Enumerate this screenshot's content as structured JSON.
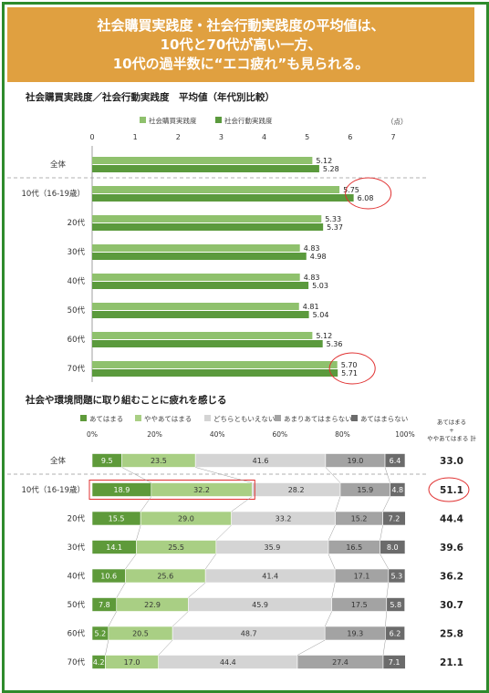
{
  "banner": {
    "line1": "社会購買実践度・社会行動実践度の平均値は、",
    "line2": "10代と70代が高い一方、",
    "line3": "10代の過半数に“エコ疲れ”も見られる。"
  },
  "colors": {
    "frame": "#2e8a2c",
    "banner_bg": "#e0a040",
    "purchase": "#8fc16d",
    "action": "#5b9a3d",
    "highlight": "#e03030",
    "s1": "#5e9a3a",
    "s2": "#a9cf84",
    "s3": "#d4d4d4",
    "s4": "#a3a3a3",
    "s5": "#6b6b6b"
  },
  "chart_data": [
    {
      "type": "bar",
      "orientation": "horizontal",
      "title": "社会購買実践度／社会行動実践度　平均値（年代別比較）",
      "unit": "（点）",
      "categories": [
        "全体",
        "10代（16-19歳）",
        "20代",
        "30代",
        "40代",
        "50代",
        "60代",
        "70代"
      ],
      "xlim": [
        0,
        7
      ],
      "xticks": [
        "0",
        "1",
        "2",
        "3",
        "4",
        "5",
        "6",
        "7"
      ],
      "legend_position": "top",
      "series": [
        {
          "name": "社会購買実践度",
          "values": [
            5.12,
            5.75,
            5.33,
            4.83,
            4.83,
            4.81,
            5.12,
            5.7
          ],
          "labels": [
            "5.12",
            "5.75",
            "5.33",
            "4.83",
            "4.83",
            "4.81",
            "5.12",
            "5.70"
          ]
        },
        {
          "name": "社会行動実践度",
          "values": [
            5.28,
            6.08,
            5.37,
            4.98,
            5.03,
            5.04,
            5.36,
            5.71
          ],
          "labels": [
            "5.28",
            "6.08",
            "5.37",
            "4.98",
            "5.03",
            "5.04",
            "5.36",
            "5.71"
          ]
        }
      ],
      "highlighted_categories": [
        "10代（16-19歳）",
        "70代"
      ]
    },
    {
      "type": "bar",
      "orientation": "horizontal",
      "stacked": "percent",
      "title": "社会や環境問題に取り組むことに疲れを感じる",
      "categories": [
        "全体",
        "10代（16-19歳）",
        "20代",
        "30代",
        "40代",
        "50代",
        "60代",
        "70代"
      ],
      "xlim": [
        0,
        100
      ],
      "xticks": [
        "0%",
        "20%",
        "40%",
        "60%",
        "80%",
        "100%"
      ],
      "legend_position": "top",
      "series": [
        {
          "name": "あてはまる",
          "values": [
            9.5,
            18.9,
            15.5,
            14.1,
            10.6,
            7.8,
            5.2,
            4.2
          ],
          "labels": [
            "9.5",
            "18.9",
            "15.5",
            "14.1",
            "10.6",
            "7.8",
            "5.2",
            "4.2"
          ]
        },
        {
          "name": "ややあてはまる",
          "values": [
            23.5,
            32.2,
            29.0,
            25.5,
            25.6,
            22.9,
            20.5,
            17.0
          ],
          "labels": [
            "23.5",
            "32.2",
            "29.0",
            "25.5",
            "25.6",
            "22.9",
            "20.5",
            "17.0"
          ]
        },
        {
          "name": "どちらともいえない",
          "values": [
            41.6,
            28.2,
            33.2,
            35.9,
            41.4,
            45.9,
            48.7,
            44.4
          ],
          "labels": [
            "41.6",
            "28.2",
            "33.2",
            "35.9",
            "41.4",
            "45.9",
            "48.7",
            "44.4"
          ]
        },
        {
          "name": "あまりあてはまらない",
          "values": [
            19.0,
            15.9,
            15.2,
            16.5,
            17.1,
            17.5,
            19.3,
            27.4
          ],
          "labels": [
            "19.0",
            "15.9",
            "15.2",
            "16.5",
            "17.1",
            "17.5",
            "19.3",
            "27.4"
          ]
        },
        {
          "name": "あてはまらない",
          "values": [
            6.4,
            4.8,
            7.2,
            8.0,
            5.3,
            5.8,
            6.2,
            7.1
          ],
          "labels": [
            "6.4",
            "4.8",
            "7.2",
            "8.0",
            "5.3",
            "5.8",
            "6.2",
            "7.1"
          ]
        }
      ],
      "totals": {
        "header_lines": [
          "あてはまる",
          "+",
          "ややあてはまる 計"
        ],
        "values": [
          33.0,
          51.1,
          44.4,
          39.6,
          36.2,
          30.7,
          25.8,
          21.1
        ],
        "labels": [
          "33.0",
          "51.1",
          "44.4",
          "39.6",
          "36.2",
          "30.7",
          "25.8",
          "21.1"
        ]
      },
      "highlighted_categories": [
        "10代（16-19歳）"
      ]
    }
  ]
}
